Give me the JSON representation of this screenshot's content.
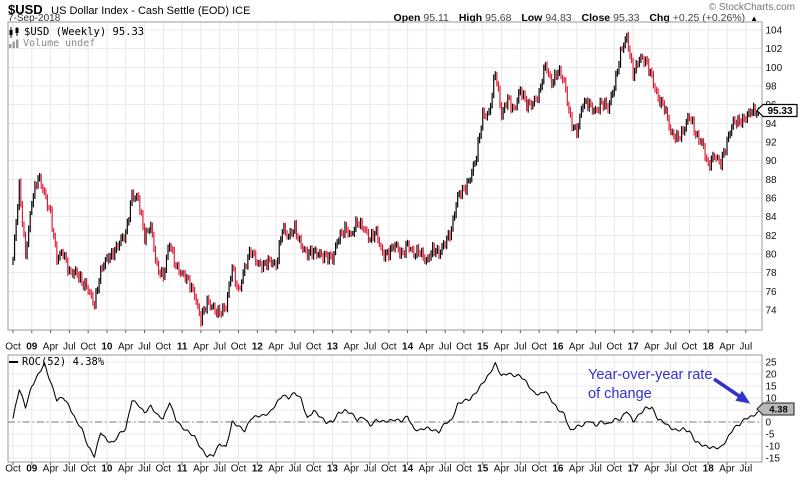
{
  "header": {
    "symbol": "$USD",
    "title": "US Dollar Index - Cash Settle (EOD) ICE",
    "date": "7-Sep-2018",
    "credit": "© StockCharts.com",
    "quote": {
      "open_label": "Open",
      "open": "95.11",
      "high_label": "High",
      "high": "95.68",
      "low_label": "Low",
      "low": "94.83",
      "close_label": "Close",
      "close": "95.33",
      "chg_label": "Chg",
      "chg": "+0.25 (+0.26%)",
      "chg_arrow": "▲"
    }
  },
  "main_panel": {
    "legend": "$USD (Weekly) 95.33",
    "volume_legend": "Volume undef",
    "last_price_label": "95.33"
  },
  "roc_panel": {
    "legend": "ROC(52) 4.38%",
    "last_value_label": "4.38",
    "annotation_line1": "Year-over-year rate",
    "annotation_line2": "of change"
  },
  "colors": {
    "up": "#000000",
    "down": "#dd1a33",
    "grid": "#e9e9e9",
    "border": "#9a9a9a",
    "axis_text": "#111111",
    "zero_line": "#777777",
    "annotation": "#3333cc",
    "price_label_bg": "#ffffff",
    "roc_label_bg": "#b9b9b9"
  },
  "chart_data": [
    {
      "type": "bar",
      "panel": "price",
      "symbol": "$USD",
      "timeframe": "Weekly",
      "start": "2008-10",
      "end": "2018-09",
      "frequency": "monthly_approx",
      "close": [
        79.5,
        87.0,
        80.0,
        85.8,
        88.0,
        86.5,
        84.6,
        79.3,
        80.0,
        78.3,
        78.1,
        76.7,
        76.4,
        74.8,
        77.9,
        79.5,
        80.4,
        81.1,
        81.9,
        86.6,
        86.0,
        81.5,
        83.2,
        78.7,
        77.3,
        81.2,
        79.0,
        77.7,
        76.9,
        75.9,
        73.0,
        74.6,
        74.3,
        73.9,
        74.1,
        78.6,
        76.2,
        78.4,
        80.2,
        79.3,
        78.8,
        79.0,
        78.8,
        83.0,
        81.6,
        82.7,
        81.2,
        79.9,
        80.0,
        80.2,
        79.8,
        79.2,
        81.9,
        83.0,
        81.7,
        83.4,
        83.1,
        81.5,
        82.1,
        80.2,
        80.2,
        80.7,
        80.0,
        81.3,
        79.7,
        80.2,
        79.5,
        80.4,
        79.8,
        81.5,
        82.7,
        85.9,
        87.0,
        88.4,
        90.3,
        94.8,
        95.3,
        99.5,
        94.6,
        96.9,
        95.5,
        97.3,
        96.1,
        96.4,
        96.9,
        100.2,
        98.6,
        99.6,
        98.2,
        94.6,
        93.1,
        95.9,
        96.1,
        95.5,
        96.0,
        95.5,
        98.3,
        101.5,
        103.0,
        99.5,
        101.1,
        100.4,
        99.0,
        96.9,
        95.6,
        92.9,
        92.7,
        93.1,
        94.6,
        93.0,
        92.1,
        89.1,
        90.6,
        90.0,
        91.8,
        94.0,
        94.5,
        94.6,
        95.1,
        95.33
      ],
      "last_close": 95.33,
      "ohlc_last": {
        "open": 95.11,
        "high": 95.68,
        "low": 94.83,
        "close": 95.33,
        "chg_pct": 0.26,
        "chg": 0.25
      },
      "ylim": [
        71.9,
        104.9
      ],
      "y_ticks": [
        104,
        102,
        100,
        98,
        96,
        94,
        92,
        90,
        88,
        86,
        84,
        82,
        80,
        78,
        76,
        74
      ],
      "x_ticks": [
        "Oct",
        "09",
        "Apr",
        "Jul",
        "Oct",
        "10",
        "Apr",
        "Jul",
        "Oct",
        "11",
        "Apr",
        "Jul",
        "Oct",
        "12",
        "Apr",
        "Jul",
        "Oct",
        "13",
        "Apr",
        "Jul",
        "Oct",
        "14",
        "Apr",
        "Jul",
        "Oct",
        "15",
        "Apr",
        "Jul",
        "Oct",
        "16",
        "Apr",
        "Jul",
        "Oct",
        "17",
        "Apr",
        "Jul",
        "Oct",
        "18",
        "Apr",
        "Jul"
      ],
      "grid": true,
      "legend_position": "top-left"
    },
    {
      "type": "line",
      "panel": "roc",
      "name": "ROC(52)",
      "values": [
        1.5,
        13.5,
        6.0,
        15.0,
        20.0,
        24.5,
        16.4,
        8.8,
        10.3,
        6.7,
        1.2,
        -3.0,
        -10.6,
        -14.5,
        -4.0,
        -7.3,
        -8.6,
        -5.1,
        -3.2,
        9.2,
        7.5,
        4.1,
        6.5,
        2.6,
        1.2,
        8.6,
        1.4,
        -2.3,
        -4.4,
        -6.4,
        -10.9,
        -13.9,
        -13.6,
        -9.3,
        -10.9,
        -0.1,
        -1.4,
        -3.4,
        1.5,
        2.1,
        2.5,
        4.1,
        7.9,
        11.3,
        9.8,
        11.9,
        9.6,
        1.7,
        5.0,
        2.3,
        -0.5,
        -0.1,
        3.9,
        5.1,
        3.7,
        0.5,
        1.8,
        -1.5,
        1.1,
        0.4,
        0.3,
        0.6,
        0.3,
        2.7,
        -2.7,
        -3.4,
        -2.7,
        -3.6,
        -4.0,
        0.0,
        0.7,
        7.1,
        8.5,
        9.5,
        12.9,
        16.6,
        19.6,
        24.0,
        19.0,
        20.5,
        19.7,
        19.4,
        16.2,
        12.2,
        11.4,
        13.3,
        9.2,
        5.1,
        3.0,
        -3.9,
        -1.6,
        -1.0,
        0.6,
        -1.8,
        -0.1,
        -0.9,
        1.4,
        1.3,
        4.5,
        -0.1,
        3.0,
        6.1,
        6.3,
        1.0,
        -0.5,
        -2.7,
        -3.4,
        -2.5,
        -3.8,
        -8.4,
        -9.9,
        -10.5,
        -10.4,
        -10.4,
        -7.3,
        -3.0,
        -1.2,
        1.8,
        2.6,
        4.38
      ],
      "last_value": 4.38,
      "ylim": [
        -16.7,
        27.9
      ],
      "y_ticks": [
        25,
        20,
        15,
        10,
        5,
        0,
        -5,
        -10,
        -15
      ],
      "zero_line": true,
      "grid": true
    }
  ]
}
